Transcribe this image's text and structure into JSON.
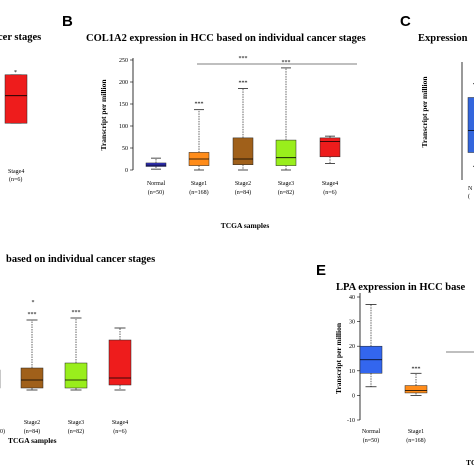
{
  "panels": {
    "A": {
      "title": "cer stages",
      "cat_label": "Stage4",
      "cat_n": "(n=6)",
      "sig": "*"
    },
    "B": {
      "letter": "B",
      "title": "COL1A2 expression in HCC based on individual cancer stages",
      "sig_bracket": "***"
    },
    "C": {
      "letter": "C",
      "title": "Expression",
      "ylabel": "Transcript per million",
      "cat_label": "N",
      "cat_n": "("
    },
    "D": {
      "title": "based on individual cancer stages",
      "xlabel": "TCGA samples",
      "left_n": "0)"
    },
    "E": {
      "letter": "E",
      "title": "LPA expression in HCC base",
      "xlabel": "TC"
    }
  },
  "chart_data": [
    {
      "panel": "A",
      "type": "box",
      "categories": [
        "Stage4"
      ],
      "boxes": [
        {
          "q1": 38,
          "median": 63,
          "q3": 82,
          "whisker_low": 38,
          "whisker_high": 82,
          "color": "#ee1c1c"
        }
      ]
    },
    {
      "panel": "B",
      "type": "box",
      "title": "COL1A2 expression in HCC based on individual cancer stages",
      "xlabel": "TCGA samples",
      "ylabel": "Transcript per million",
      "ylim": [
        0,
        250
      ],
      "yticks": [
        0,
        50,
        100,
        150,
        200,
        250
      ],
      "categories": [
        "Normal",
        "Stage1",
        "Stage2",
        "Stage3",
        "Stage4"
      ],
      "n_labels": [
        "(n=50)",
        "(n=168)",
        "(n=84)",
        "(n=82)",
        "(n=6)"
      ],
      "significance": [
        "",
        "***",
        "***",
        "***",
        ""
      ],
      "boxes": [
        {
          "q1": 8,
          "median": 11,
          "q3": 16,
          "whisker_low": 2,
          "whisker_high": 27,
          "color": "#3333cc"
        },
        {
          "q1": 10,
          "median": 25,
          "q3": 40,
          "whisker_low": 0,
          "whisker_high": 137,
          "color": "#ff8c1a"
        },
        {
          "q1": 12,
          "median": 25,
          "q3": 73,
          "whisker_low": 0,
          "whisker_high": 185,
          "color": "#a0601a"
        },
        {
          "q1": 10,
          "median": 28,
          "q3": 68,
          "whisker_low": 0,
          "whisker_high": 232,
          "color": "#99ee1c"
        },
        {
          "q1": 30,
          "median": 65,
          "q3": 73,
          "whisker_low": 15,
          "whisker_high": 77,
          "color": "#ee1c1c"
        }
      ]
    },
    {
      "panel": "C",
      "type": "box",
      "ylabel": "Transcript per million",
      "categories": [
        "N"
      ],
      "boxes": [
        {
          "q1": 10,
          "median": 18,
          "q3": 30,
          "whisker_low": 5,
          "whisker_high": 35,
          "color": "#3366dd"
        }
      ]
    },
    {
      "panel": "D",
      "type": "box",
      "xlabel": "TCGA samples",
      "categories": [
        "Stage2",
        "Stage3",
        "Stage4"
      ],
      "n_labels": [
        "(n=84)",
        "(n=82)",
        "(n=6)"
      ],
      "significance": [
        "***",
        "***",
        ""
      ],
      "top_mark": "*",
      "boxes": [
        {
          "q1": 2,
          "median": 10,
          "q3": 22,
          "whisker_low": 0,
          "whisker_high": 70,
          "color": "#a0601a"
        },
        {
          "q1": 2,
          "median": 10,
          "q3": 27,
          "whisker_low": 0,
          "whisker_high": 72,
          "color": "#99ee1c"
        },
        {
          "q1": 5,
          "median": 12,
          "q3": 50,
          "whisker_low": 0,
          "whisker_high": 62,
          "color": "#ee1c1c"
        }
      ]
    },
    {
      "panel": "E",
      "type": "box",
      "title": "LPA expression in HCC base",
      "ylabel": "Transcript per million",
      "ylim": [
        -10,
        40
      ],
      "yticks": [
        -10,
        0,
        10,
        20,
        30,
        40
      ],
      "categories": [
        "Normal",
        "Stage1"
      ],
      "n_labels": [
        "(n=50)",
        "(n=168)"
      ],
      "significance": [
        "",
        "***"
      ],
      "boxes": [
        {
          "q1": 9,
          "median": 14.5,
          "q3": 20,
          "whisker_low": 3.5,
          "whisker_high": 37,
          "color": "#3366ee"
        },
        {
          "q1": 1,
          "median": 2,
          "q3": 4,
          "whisker_low": 0,
          "whisker_high": 9,
          "color": "#ff8c1a"
        }
      ]
    }
  ]
}
